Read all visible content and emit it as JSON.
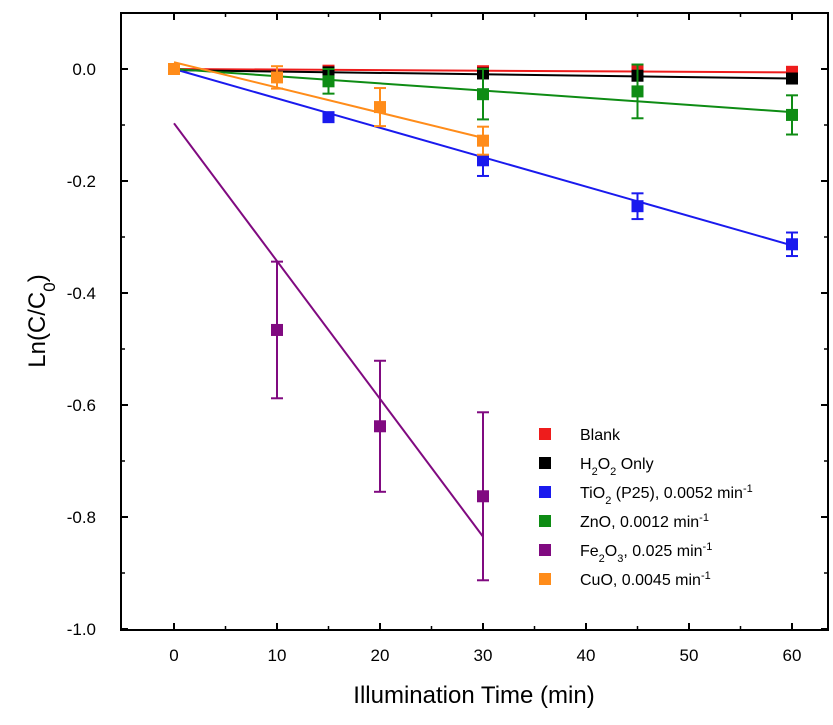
{
  "chart_data": {
    "type": "scatter",
    "title": "",
    "xlabel": "Illumination Time (min)",
    "ylabel_parts": [
      {
        "text": "Ln(C/C"
      },
      {
        "text": "0",
        "sub": true
      },
      {
        "text": ")"
      }
    ],
    "xlim": [
      -5,
      63
    ],
    "ylim": [
      -1.0,
      0.1
    ],
    "xticks": [
      0,
      10,
      20,
      30,
      40,
      50,
      60
    ],
    "xtick_labels": [
      "0",
      "10",
      "20",
      "30",
      "40",
      "50",
      "60"
    ],
    "yticks": [
      0.0,
      -0.2,
      -0.4,
      -0.6,
      -0.8,
      -1.0
    ],
    "ytick_labels": [
      "0.0",
      "-0.2",
      "-0.4",
      "-0.6",
      "-0.8",
      "-1.0"
    ],
    "grid": false,
    "legend_position": "bottom-right",
    "series": [
      {
        "color": "#ee1c1c",
        "legend": [
          {
            "text": "Blank"
          }
        ],
        "points": [
          [
            0,
            0.0,
            0.003
          ],
          [
            15,
            -0.003,
            0.005
          ],
          [
            30,
            -0.004,
            0.005
          ],
          [
            45,
            -0.003,
            0.004
          ],
          [
            60,
            -0.005,
            0.005
          ]
        ],
        "fit": [
          [
            0,
            0.0
          ],
          [
            60,
            -0.006
          ]
        ]
      },
      {
        "color": "#000000",
        "legend": [
          {
            "text": "H"
          },
          {
            "text": "2",
            "sub": true
          },
          {
            "text": "O"
          },
          {
            "text": "2",
            "sub": true
          },
          {
            "text": " Only"
          }
        ],
        "points": [
          [
            0,
            0.0,
            0.003
          ],
          [
            15,
            -0.006,
            0.007
          ],
          [
            30,
            -0.008,
            0.008
          ],
          [
            45,
            -0.012,
            0.008
          ],
          [
            60,
            -0.017,
            0.008
          ]
        ],
        "fit": [
          [
            0,
            -0.002
          ],
          [
            60,
            -0.017
          ]
        ]
      },
      {
        "color": "#1a1aee",
        "legend": [
          {
            "text": "TiO"
          },
          {
            "text": "2",
            "sub": true
          },
          {
            "text": " (P25), 0.0052 min"
          },
          {
            "text": "-1",
            "sup": true
          }
        ],
        "points": [
          [
            0,
            0.0,
            0.003
          ],
          [
            15,
            -0.086,
            0.008
          ],
          [
            30,
            -0.163,
            0.028
          ],
          [
            45,
            -0.245,
            0.023
          ],
          [
            60,
            -0.313,
            0.021
          ]
        ],
        "fit": [
          [
            0,
            0.0
          ],
          [
            60,
            -0.315
          ]
        ]
      },
      {
        "color": "#0e8c14",
        "legend": [
          {
            "text": "ZnO, 0.0012 min"
          },
          {
            "text": "-1",
            "sup": true
          }
        ],
        "points": [
          [
            0,
            0.0,
            0.003
          ],
          [
            15,
            -0.022,
            0.022
          ],
          [
            30,
            -0.045,
            0.045
          ],
          [
            45,
            -0.04,
            0.048
          ],
          [
            60,
            -0.082,
            0.035
          ]
        ],
        "fit": [
          [
            0,
            0.0
          ],
          [
            60,
            -0.077
          ]
        ]
      },
      {
        "color": "#800a80",
        "legend": [
          {
            "text": "Fe"
          },
          {
            "text": "2",
            "sub": true
          },
          {
            "text": "O"
          },
          {
            "text": "3",
            "sub": true
          },
          {
            "text": ", 0.025 min"
          },
          {
            "text": "-1",
            "sup": true
          }
        ],
        "points": [
          [
            10,
            -0.466,
            0.122
          ],
          [
            20,
            -0.638,
            0.117
          ],
          [
            30,
            -0.763,
            0.15
          ]
        ],
        "fit": [
          [
            0,
            -0.097
          ],
          [
            30,
            -0.835
          ]
        ]
      },
      {
        "color": "#ff8c1a",
        "legend": [
          {
            "text": "CuO, 0.0045 min"
          },
          {
            "text": "-1",
            "sup": true
          }
        ],
        "points": [
          [
            0,
            0.0,
            0.005
          ],
          [
            10,
            -0.015,
            0.02
          ],
          [
            20,
            -0.068,
            0.034
          ],
          [
            30,
            -0.128,
            0.025
          ]
        ],
        "fit": [
          [
            0,
            0.012
          ],
          [
            30,
            -0.123
          ]
        ]
      }
    ]
  }
}
